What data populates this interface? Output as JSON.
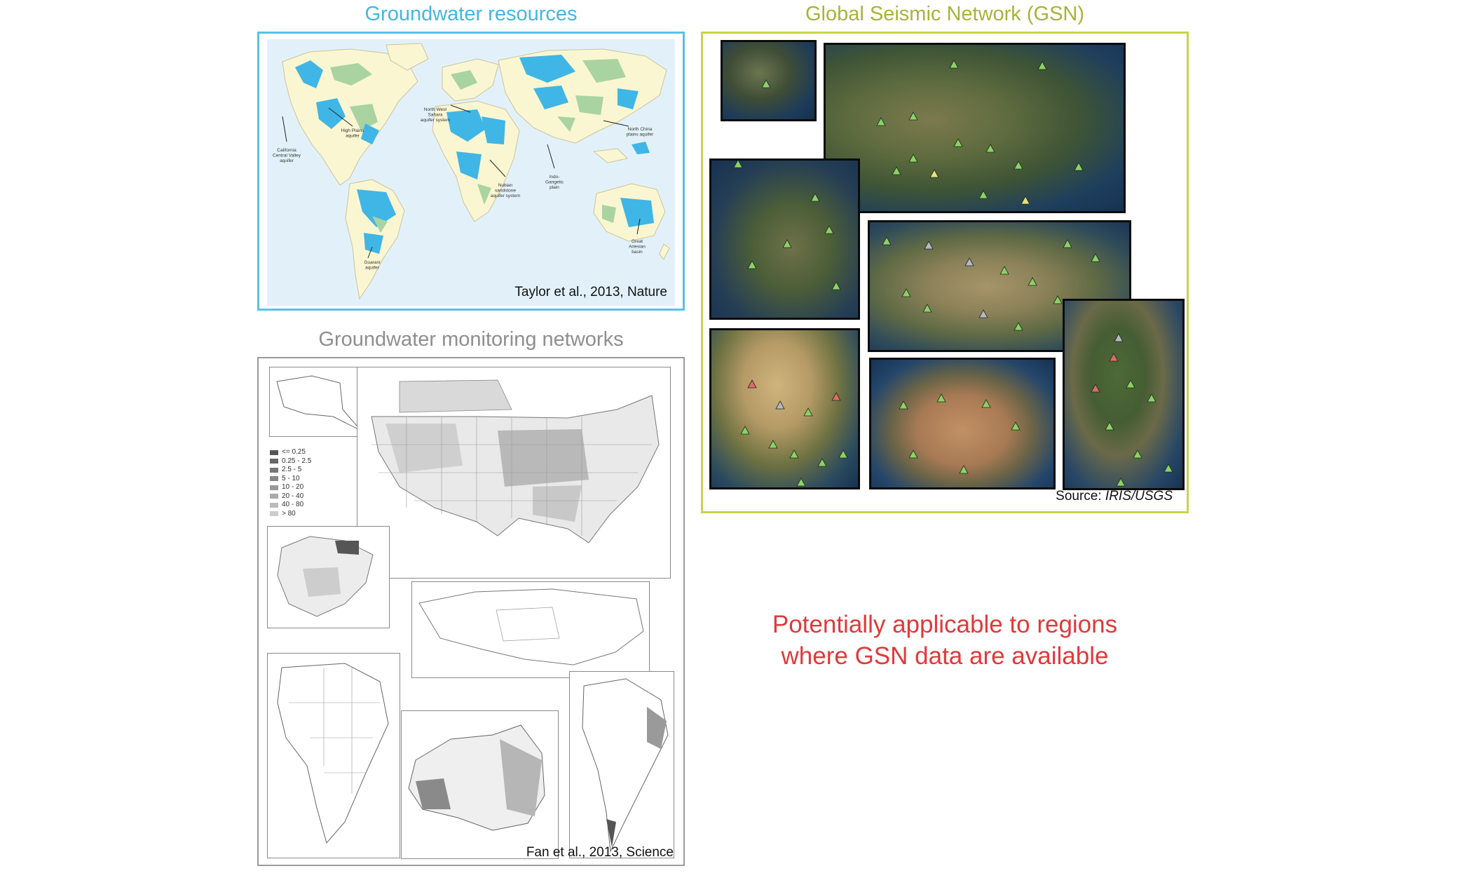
{
  "groundwater_resources": {
    "title": "Groundwater resources",
    "credit": "Taylor et al., 2013, Nature",
    "frame_color": "#5bc0e4",
    "aquifer_labels": [
      "California\nCentral Valley\naquifer",
      "High Plains\naquifer",
      "North West\nSahara\naquifer system",
      "Nubian\nsandstone\naquifer system",
      "Indo-\nGangetic\nplain",
      "North China\nplains aquifer",
      "Guarani\naquifer",
      "Great\nArtesian\nbasin"
    ]
  },
  "monitoring_networks": {
    "title": "Groundwater monitoring networks",
    "credit": "Fan et al., 2013, Science",
    "frame_color": "#9b9b9b",
    "legend": [
      "<= 0.25",
      "0.25 - 2.5",
      "2.5 - 5",
      "5 - 10",
      "10 - 20",
      "20 - 40",
      "40 - 80",
      "> 80"
    ]
  },
  "seismic_network": {
    "title": "Global Seismic Network (GSN)",
    "credit_prefix": "Source: ",
    "credit_source": "IRIS/USGS",
    "frame_color": "#c9d34a"
  },
  "statement": {
    "line1": "Potentially applicable to regions",
    "line2": "where GSN data are available",
    "color": "#e0393a"
  }
}
